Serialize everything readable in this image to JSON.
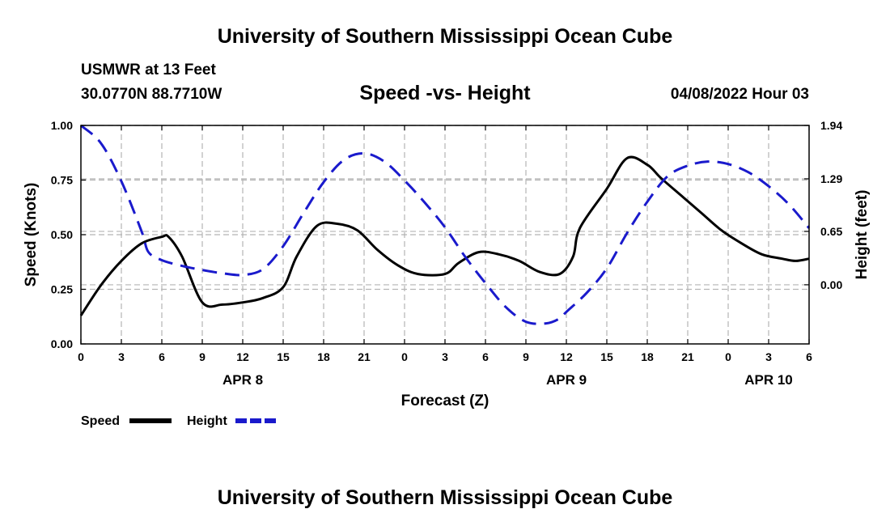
{
  "page": {
    "top_title": "University of Southern Mississippi Ocean Cube",
    "bottom_title": "University of Southern Mississippi Ocean Cube",
    "station_line": "USMWR at 13 Feet",
    "coord_line": "30.0770N  88.7710W",
    "date_line": "04/08/2022 Hour 03"
  },
  "colors": {
    "speed": "#000000",
    "height": "#1a1acc",
    "grid": "#b4b4b4"
  },
  "chart_data": {
    "type": "line",
    "title": "Speed -vs- Height",
    "xlabel": "Forecast (Z)",
    "ylabel": "Speed (Knots)",
    "y2label": "Height (feet)",
    "x_range": [
      0,
      54
    ],
    "ylim": [
      0,
      1
    ],
    "y2lim": [
      -0.72,
      1.94
    ],
    "grid": true,
    "legend": "bottom-left",
    "x_ticks": [
      0,
      3,
      6,
      9,
      12,
      15,
      18,
      21,
      24,
      27,
      30,
      33,
      36,
      39,
      42,
      45,
      48,
      51,
      54
    ],
    "x_tick_labels": [
      "0",
      "3",
      "6",
      "9",
      "12",
      "15",
      "18",
      "21",
      "0",
      "3",
      "6",
      "9",
      "12",
      "15",
      "18",
      "21",
      "0",
      "3",
      "6"
    ],
    "date_labels": [
      {
        "x": 12,
        "label": "APR 8"
      },
      {
        "x": 36,
        "label": "APR 9"
      },
      {
        "x": 51,
        "label": "APR 10"
      }
    ],
    "y_ticks": [
      0,
      0.25,
      0.5,
      0.75,
      1.0
    ],
    "y_tick_labels": [
      "0.00",
      "0.25",
      "0.50",
      "0.75",
      "1.00"
    ],
    "y2_ticks": [
      0.0,
      0.65,
      1.29,
      1.94
    ],
    "y2_tick_labels": [
      "0.00",
      "0.65",
      "1.29",
      "1.94"
    ],
    "series": [
      {
        "name": "Speed",
        "axis": "left",
        "style": "solid",
        "x": [
          0,
          1.5,
          3,
          4.5,
          6,
          6.5,
          7.5,
          9,
          10.5,
          12,
          13.5,
          15,
          16,
          17.5,
          19,
          20.5,
          22,
          23.5,
          25,
          27,
          28,
          29.5,
          31,
          32.5,
          34,
          35.5,
          36.5,
          37,
          39,
          40.5,
          42,
          43,
          44.5,
          46,
          47.5,
          49,
          50.5,
          52,
          53,
          54
        ],
        "values": [
          0.13,
          0.27,
          0.38,
          0.46,
          0.49,
          0.49,
          0.4,
          0.19,
          0.18,
          0.19,
          0.21,
          0.26,
          0.4,
          0.54,
          0.55,
          0.52,
          0.43,
          0.36,
          0.32,
          0.32,
          0.37,
          0.42,
          0.41,
          0.38,
          0.33,
          0.32,
          0.4,
          0.53,
          0.71,
          0.85,
          0.82,
          0.76,
          0.68,
          0.6,
          0.52,
          0.46,
          0.41,
          0.39,
          0.38,
          0.39
        ]
      },
      {
        "name": "Height",
        "axis": "right",
        "style": "dashed",
        "x": [
          0,
          1.5,
          3,
          4.5,
          5,
          6,
          7.5,
          9,
          10.5,
          12,
          13.5,
          15,
          16.5,
          18,
          19.5,
          21,
          22.5,
          24,
          25.5,
          27,
          28.5,
          30,
          31.5,
          33,
          34.5,
          35.5,
          36,
          37.5,
          39,
          40.5,
          42,
          43.5,
          45,
          46.5,
          48,
          49.5,
          51,
          52.5,
          54
        ],
        "values": [
          1.94,
          1.72,
          1.26,
          0.65,
          0.4,
          0.3,
          0.23,
          0.18,
          0.14,
          0.12,
          0.19,
          0.47,
          0.87,
          1.25,
          1.52,
          1.6,
          1.5,
          1.27,
          1.0,
          0.7,
          0.34,
          0.02,
          -0.27,
          -0.45,
          -0.47,
          -0.41,
          -0.33,
          -0.1,
          0.2,
          0.63,
          1.01,
          1.32,
          1.45,
          1.5,
          1.47,
          1.37,
          1.2,
          0.98,
          0.69
        ]
      }
    ]
  }
}
